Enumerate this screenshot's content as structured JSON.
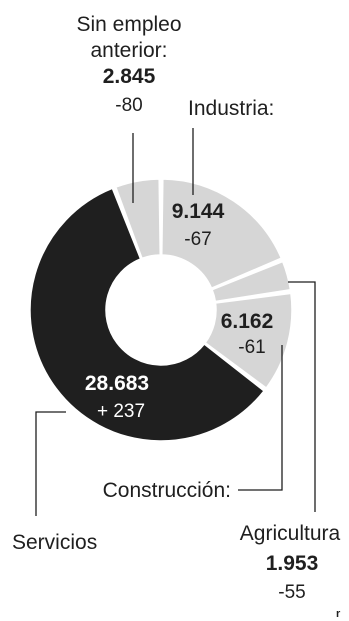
{
  "chart_data": {
    "type": "pie",
    "categories": [
      "Industria",
      "Agricultura",
      "Construcción",
      "Servicios",
      "Sin empleo anterior"
    ],
    "values": [
      9144,
      1953,
      6162,
      28683,
      2845
    ],
    "value_labels": [
      "9.144",
      "1.953",
      "6.162",
      "28.683",
      "2.845"
    ],
    "changes": [
      "-67",
      "-55",
      "-61",
      "+ 237",
      "-80"
    ],
    "label_names": [
      "Industria:",
      "Agricultura",
      "Construcción:",
      "Servicios",
      "Sin empleo anterior:"
    ],
    "colors": [
      "#d6d6d6",
      "#d6d6d6",
      "#d6d6d6",
      "#1f1f1f",
      "#d6d6d6"
    ],
    "donut": true
  },
  "logo": "r"
}
